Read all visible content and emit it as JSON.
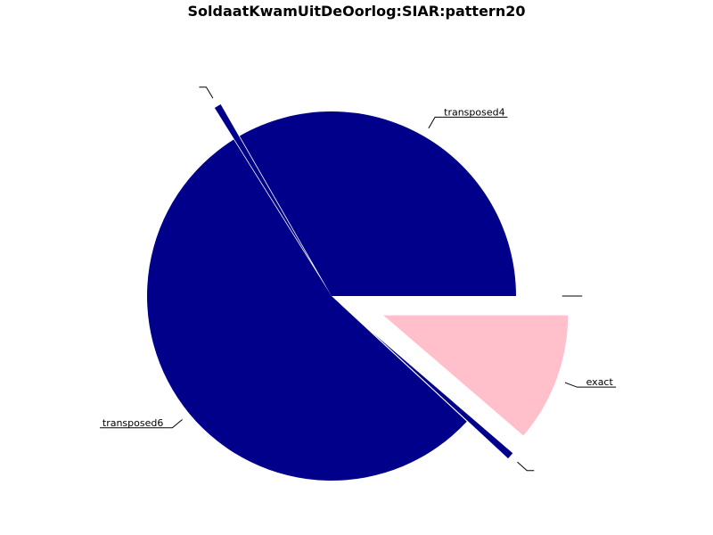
{
  "chart_data": {
    "type": "pie",
    "title": "SoldaatKwamUitDeOorlog:SIAR:pattern20",
    "slices": [
      {
        "label": "transposed4",
        "value": 33.3,
        "color": "#00008b",
        "explode": 0.0
      },
      {
        "label": "",
        "value": 0.6,
        "color": "#00008b",
        "explode": 0.2
      },
      {
        "label": "transposed6",
        "value": 54.2,
        "color": "#00008b",
        "explode": 0.0
      },
      {
        "label": "",
        "value": 0.6,
        "color": "#00008b",
        "explode": 0.3
      },
      {
        "label": "exact",
        "value": 11.3,
        "color": "#ffc0cb",
        "explode": 0.3
      },
      {
        "label": "",
        "value": 0.0,
        "color": "#00008b",
        "explode": 0.2
      }
    ],
    "start_angle": 0,
    "direction": "counterclockwise"
  }
}
